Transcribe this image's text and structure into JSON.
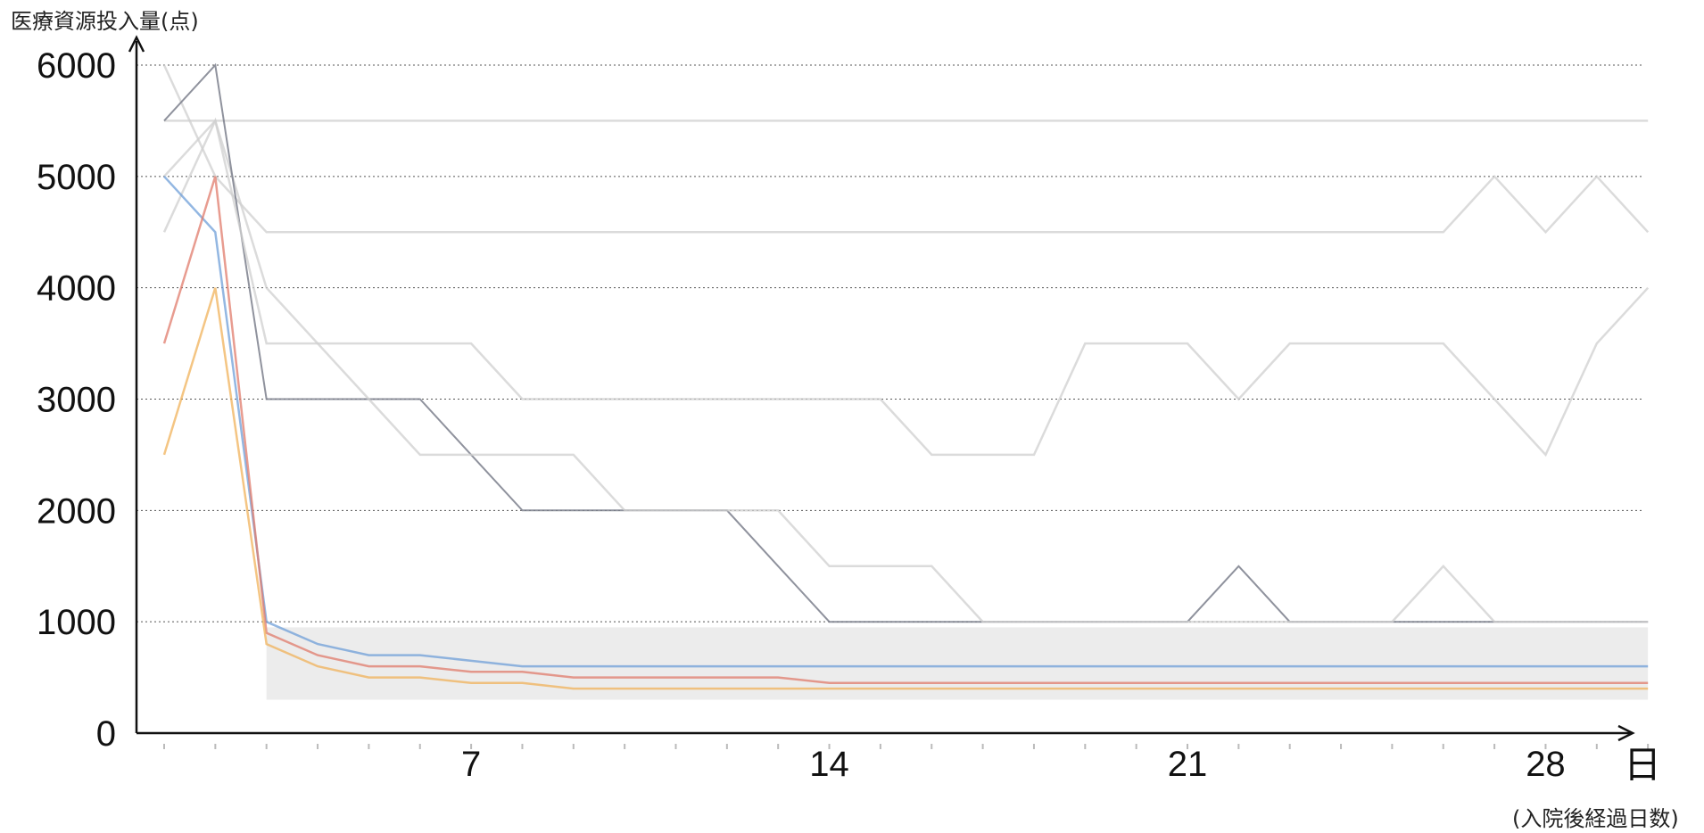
{
  "chart_data": {
    "type": "line",
    "ylabel": "医療資源投入量(点)",
    "xlabel": "(入院後経過日数)",
    "x_unit": "日",
    "ylim": [
      0,
      6000
    ],
    "xlim": [
      1,
      30
    ],
    "y_ticks": [
      0,
      1000,
      2000,
      3000,
      4000,
      5000,
      6000
    ],
    "x_tick_labels": [
      7,
      14,
      21,
      28
    ],
    "grid": "horizontal dotted",
    "legend": "none",
    "colors": {
      "background_series": "#cfcfcf",
      "dark_series": "#7b7f8c",
      "accent_series": [
        "#e07b6b",
        "#f0b25a",
        "#6f9fd8",
        "#9ac46a",
        "#b48ad4",
        "#5b6f9a",
        "#f2d25b"
      ]
    },
    "series": [
      {
        "x": [
          1,
          2,
          3,
          4,
          5,
          6,
          7,
          8,
          9,
          10,
          11,
          12,
          13,
          14,
          15,
          16,
          17,
          18,
          19,
          20,
          21,
          22,
          23,
          24,
          25,
          26,
          27,
          28,
          29,
          30
        ],
        "values": [
          5500,
          5500,
          5500,
          5500,
          5500,
          5500,
          5500,
          5500,
          5500,
          5500,
          5500,
          5500,
          5500,
          5500,
          5500,
          5500,
          5500,
          5500,
          5500,
          5500,
          5500,
          5500,
          5500,
          5500,
          5500,
          5500,
          5500,
          5500,
          5500,
          5500
        ]
      },
      {
        "x": [
          1,
          2,
          3,
          4,
          5,
          6,
          7,
          8,
          9,
          10,
          11,
          12,
          13,
          14,
          15,
          16,
          17,
          18,
          19,
          20,
          21,
          22,
          23,
          24,
          25,
          26,
          27,
          28,
          29,
          30
        ],
        "values": [
          6000,
          5000,
          4500,
          4500,
          4500,
          4500,
          4500,
          4500,
          4500,
          4500,
          4500,
          4500,
          4500,
          4500,
          4500,
          4500,
          4500,
          4500,
          4500,
          4500,
          4500,
          4500,
          4500,
          4500,
          4500,
          4500,
          5000,
          4500,
          5000,
          4500
        ]
      },
      {
        "x": [
          1,
          2,
          3,
          4,
          5,
          6,
          7,
          8,
          9,
          10,
          11,
          12,
          13,
          14,
          15,
          16,
          17,
          18,
          19,
          20,
          21,
          22,
          23,
          24,
          25,
          26,
          27,
          28,
          29,
          30
        ],
        "values": [
          5000,
          5500,
          4000,
          3500,
          3500,
          3500,
          3500,
          3000,
          3000,
          3000,
          3000,
          3000,
          3000,
          3000,
          3000,
          2500,
          2500,
          2500,
          3500,
          3500,
          3500,
          3000,
          3500,
          3500,
          3500,
          3500,
          3000,
          2500,
          3500,
          4000
        ]
      },
      {
        "x": [
          1,
          2,
          3,
          4,
          5,
          6,
          7,
          8,
          9,
          10,
          11,
          12,
          13,
          14,
          15,
          16,
          17,
          18,
          19,
          20,
          21,
          22,
          23,
          24,
          25,
          26,
          27,
          28,
          29,
          30
        ],
        "values": [
          5500,
          6000,
          3000,
          3000,
          3000,
          3000,
          2500,
          2000,
          2000,
          2000,
          2000,
          2000,
          1500,
          1000,
          1000,
          1000,
          1000,
          1000,
          1000,
          1000,
          1000,
          1500,
          1000,
          1000,
          1000,
          1000,
          1000,
          1000,
          1000,
          1000
        ]
      },
      {
        "x": [
          1,
          2,
          3,
          4,
          5,
          6,
          7,
          8,
          9,
          10,
          11,
          12,
          13,
          14,
          15,
          16,
          17,
          18,
          19,
          20,
          21,
          22,
          23,
          24,
          25,
          26,
          27,
          28,
          29,
          30
        ],
        "values": [
          4500,
          5500,
          3500,
          3500,
          3000,
          2500,
          2500,
          2500,
          2500,
          2000,
          2000,
          2000,
          2000,
          1500,
          1500,
          1500,
          1000,
          1000,
          1000,
          1000,
          1000,
          1000,
          1000,
          1000,
          1000,
          1500,
          1000,
          1000,
          1000,
          1000
        ]
      },
      {
        "x": [
          1,
          2,
          3,
          4,
          5,
          6,
          7,
          8,
          9,
          10,
          11,
          12,
          13,
          14,
          15,
          16,
          17,
          18,
          19,
          20,
          21,
          22,
          23,
          24,
          25,
          26,
          27,
          28,
          29,
          30
        ],
        "values": [
          5000,
          4500,
          1000,
          800,
          700,
          700,
          650,
          600,
          600,
          600,
          600,
          600,
          600,
          600,
          600,
          600,
          600,
          600,
          600,
          600,
          600,
          600,
          600,
          600,
          600,
          600,
          600,
          600,
          600,
          600
        ]
      },
      {
        "x": [
          1,
          2,
          3,
          4,
          5,
          6,
          7,
          8,
          9,
          10,
          11,
          12,
          13,
          14,
          15,
          16,
          17,
          18,
          19,
          20,
          21,
          22,
          23,
          24,
          25,
          26,
          27,
          28,
          29,
          30
        ],
        "values": [
          3500,
          5000,
          900,
          700,
          600,
          600,
          550,
          550,
          500,
          500,
          500,
          500,
          500,
          450,
          450,
          450,
          450,
          450,
          450,
          450,
          450,
          450,
          450,
          450,
          450,
          450,
          450,
          450,
          450,
          450
        ]
      },
      {
        "x": [
          1,
          2,
          3,
          4,
          5,
          6,
          7,
          8,
          9,
          10,
          11,
          12,
          13,
          14,
          15,
          16,
          17,
          18,
          19,
          20,
          21,
          22,
          23,
          24,
          25,
          26,
          27,
          28,
          29,
          30
        ],
        "values": [
          2500,
          4000,
          800,
          600,
          500,
          500,
          450,
          450,
          400,
          400,
          400,
          400,
          400,
          400,
          400,
          400,
          400,
          400,
          400,
          400,
          400,
          400,
          400,
          400,
          400,
          400,
          400,
          400,
          400,
          400
        ]
      }
    ]
  }
}
